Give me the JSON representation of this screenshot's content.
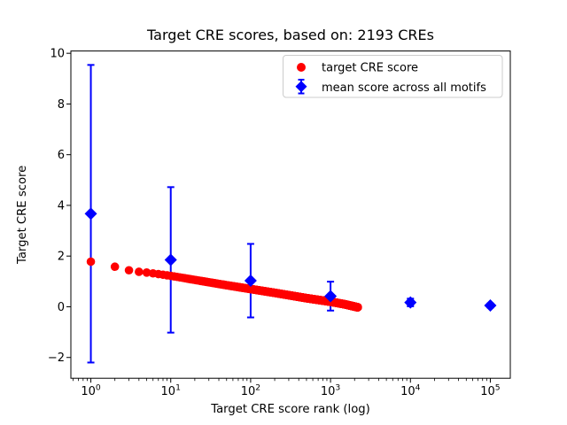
{
  "figure": {
    "background": "#ffffff",
    "axes_face_color": "#ffffff",
    "spine_color": "#000000"
  },
  "chart_data": {
    "type": "scatter",
    "title": "Target CRE scores, based on: 2193 CREs",
    "xlabel": "Target CRE score rank (log)",
    "ylabel": "Target CRE score",
    "x_scale": "log",
    "xlim_log10": [
      -0.25,
      5.25
    ],
    "ylim": [
      -2.82,
      10.09
    ],
    "x_tick_exponents": [
      0,
      1,
      2,
      3,
      4,
      5
    ],
    "y_ticks": [
      -2,
      0,
      2,
      4,
      6,
      8,
      10
    ],
    "grid": false,
    "legend_position": "upper right",
    "series": [
      {
        "name": "target CRE score",
        "type": "scatter",
        "marker": "circle",
        "color": "#ff0000",
        "n_points": 2193,
        "anchor_ranks": [
          1,
          2,
          3,
          4,
          5,
          7,
          10,
          20,
          50,
          100,
          200,
          500,
          1000,
          1500,
          2193
        ],
        "anchor_scores": [
          1.78,
          1.58,
          1.44,
          1.38,
          1.35,
          1.29,
          1.22,
          1.06,
          0.85,
          0.7,
          0.55,
          0.34,
          0.2,
          0.1,
          -0.02
        ]
      },
      {
        "name": "mean score across all motifs",
        "type": "errorbar",
        "marker": "diamond",
        "color": "#0000ff",
        "x": [
          1,
          10,
          100,
          1000,
          10000,
          100000
        ],
        "y": [
          3.67,
          1.85,
          1.03,
          0.42,
          0.17,
          0.05
        ],
        "yerr": [
          5.87,
          2.87,
          1.45,
          0.57,
          0.15,
          0.08
        ]
      }
    ]
  }
}
